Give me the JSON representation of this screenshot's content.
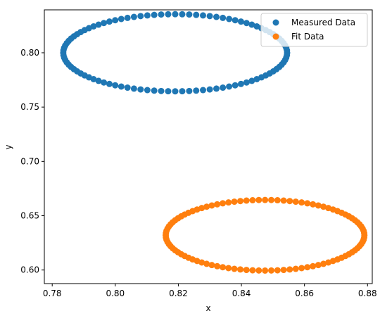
{
  "chart_data": {
    "type": "scatter",
    "title": "",
    "xlabel": "x",
    "ylabel": "y",
    "xlim": [
      0.7775,
      0.8815
    ],
    "ylim": [
      0.5875,
      0.8395
    ],
    "grid": false,
    "legend_position": "upper-right",
    "xticks": [
      "0.78",
      "0.80",
      "0.82",
      "0.84",
      "0.86",
      "0.88"
    ],
    "yticks": [
      "0.60",
      "0.65",
      "0.70",
      "0.75",
      "0.80"
    ],
    "series": [
      {
        "name": "Measured Data",
        "color": "#1f77b4",
        "shape": "ellipse",
        "center": [
          0.819,
          0.8
        ],
        "semi_axes": [
          0.0355,
          0.0355
        ],
        "y_semi_axis": 0.0355,
        "point_count": 100
      },
      {
        "name": "Fit Data",
        "color": "#ff7f0e",
        "shape": "ellipse",
        "center": [
          0.8475,
          0.632
        ],
        "semi_axes": [
          0.0315,
          0.0325
        ],
        "point_count": 100
      }
    ]
  }
}
